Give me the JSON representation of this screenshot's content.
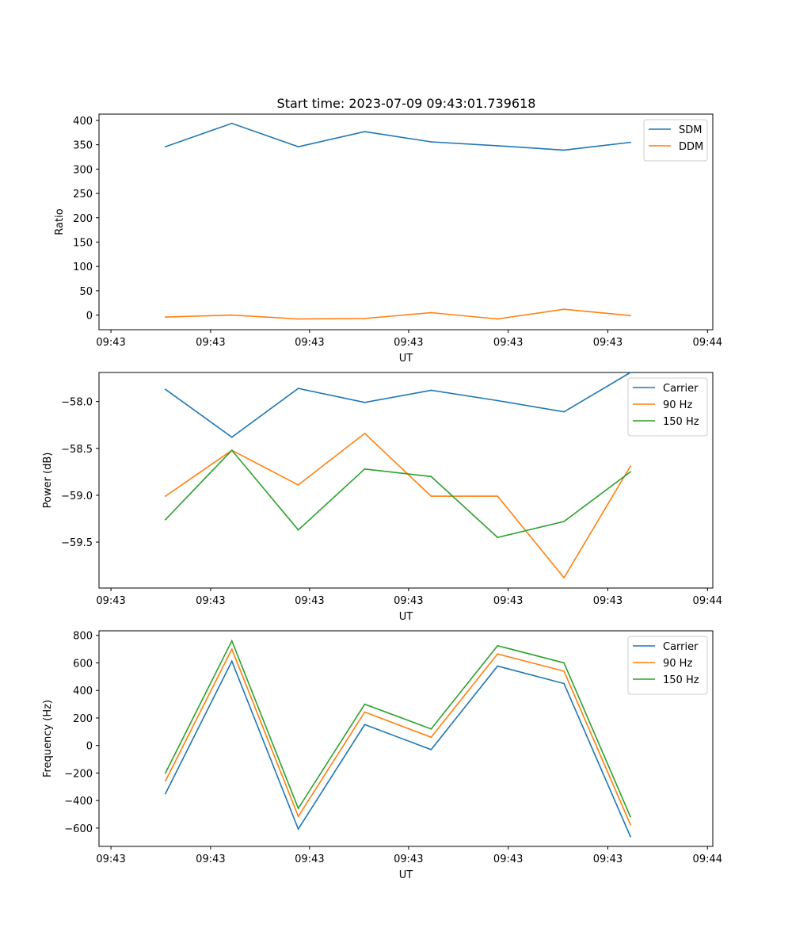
{
  "figure_title": "Start time: 2023-07-09 09:43:01.739618",
  "colors": {
    "blue": "#1f77b4",
    "orange": "#ff7f0e",
    "green": "#2ca02c"
  },
  "chart_data": [
    {
      "type": "line",
      "id": "ratio",
      "title": "Start time: 2023-07-09 09:43:01.739618",
      "xlabel": "UT",
      "ylabel": "Ratio",
      "x": [
        1,
        2,
        3,
        4,
        5,
        6,
        7,
        8
      ],
      "xlim": [
        0,
        9.24
      ],
      "xticks": [
        0.18,
        1.68,
        3.17,
        4.66,
        6.16,
        7.66,
        9.16
      ],
      "xtick_labels": [
        "09:43",
        "09:43",
        "09:43",
        "09:43",
        "09:43",
        "09:43",
        "09:44"
      ],
      "ylim": [
        -30,
        413
      ],
      "yticks": [
        0,
        50,
        100,
        150,
        200,
        250,
        300,
        350,
        400
      ],
      "ytick_labels": [
        "0",
        "50",
        "100",
        "150",
        "200",
        "250",
        "300",
        "350",
        "400"
      ],
      "legend_position": "top-right",
      "series": [
        {
          "name": "SDM",
          "color": "#1f77b4",
          "values": [
            346,
            394,
            346,
            377,
            356,
            348,
            339,
            355
          ]
        },
        {
          "name": "DDM",
          "color": "#ff7f0e",
          "values": [
            -4,
            0,
            -8,
            -7,
            5,
            -8,
            12,
            -1
          ]
        }
      ]
    },
    {
      "type": "line",
      "id": "power",
      "title": "",
      "xlabel": "UT",
      "ylabel": "Power (dB)",
      "x": [
        1,
        2,
        3,
        4,
        5,
        6,
        7,
        8
      ],
      "xlim": [
        0,
        9.24
      ],
      "xticks": [
        0.18,
        1.68,
        3.17,
        4.66,
        6.16,
        7.66,
        9.16
      ],
      "xtick_labels": [
        "09:43",
        "09:43",
        "09:43",
        "09:43",
        "09:43",
        "09:43",
        "09:44"
      ],
      "ylim": [
        -59.99,
        -57.69
      ],
      "yticks": [
        -59.5,
        -59.0,
        -58.5,
        -58.0
      ],
      "ytick_labels": [
        "−59.5",
        "−59.0",
        "−58.5",
        "−58.0"
      ],
      "legend_position": "top-right",
      "series": [
        {
          "name": "Carrier",
          "color": "#1f77b4",
          "values": [
            -57.87,
            -58.38,
            -57.86,
            -58.01,
            -57.88,
            -57.99,
            -58.11,
            -57.69
          ]
        },
        {
          "name": "90 Hz",
          "color": "#ff7f0e",
          "values": [
            -59.01,
            -58.52,
            -58.89,
            -58.34,
            -59.01,
            -59.01,
            -59.88,
            -58.69
          ]
        },
        {
          "name": "150 Hz",
          "color": "#2ca02c",
          "values": [
            -59.26,
            -58.52,
            -59.37,
            -58.72,
            -58.8,
            -59.45,
            -59.28,
            -58.75
          ]
        }
      ]
    },
    {
      "type": "line",
      "id": "frequency",
      "title": "",
      "xlabel": "UT",
      "ylabel": "Frequency (Hz)",
      "x": [
        1,
        2,
        3,
        4,
        5,
        6,
        7,
        8
      ],
      "xlim": [
        0,
        9.24
      ],
      "xticks": [
        0.18,
        1.68,
        3.17,
        4.66,
        6.16,
        7.66,
        9.16
      ],
      "xtick_labels": [
        "09:43",
        "09:43",
        "09:43",
        "09:43",
        "09:43",
        "09:43",
        "09:44"
      ],
      "ylim": [
        -733,
        833
      ],
      "yticks": [
        -600,
        -400,
        -200,
        0,
        200,
        400,
        600,
        800
      ],
      "ytick_labels": [
        "−600",
        "−400",
        "−200",
        "0",
        "200",
        "400",
        "600",
        "800"
      ],
      "legend_position": "top-right",
      "series": [
        {
          "name": "Carrier",
          "color": "#1f77b4",
          "values": [
            -350,
            612,
            -607,
            152,
            -30,
            577,
            450,
            -662
          ]
        },
        {
          "name": "90 Hz",
          "color": "#ff7f0e",
          "values": [
            -258,
            700,
            -515,
            243,
            60,
            665,
            540,
            -575
          ]
        },
        {
          "name": "150 Hz",
          "color": "#2ca02c",
          "values": [
            -200,
            760,
            -457,
            300,
            120,
            725,
            600,
            -518
          ]
        }
      ]
    }
  ]
}
